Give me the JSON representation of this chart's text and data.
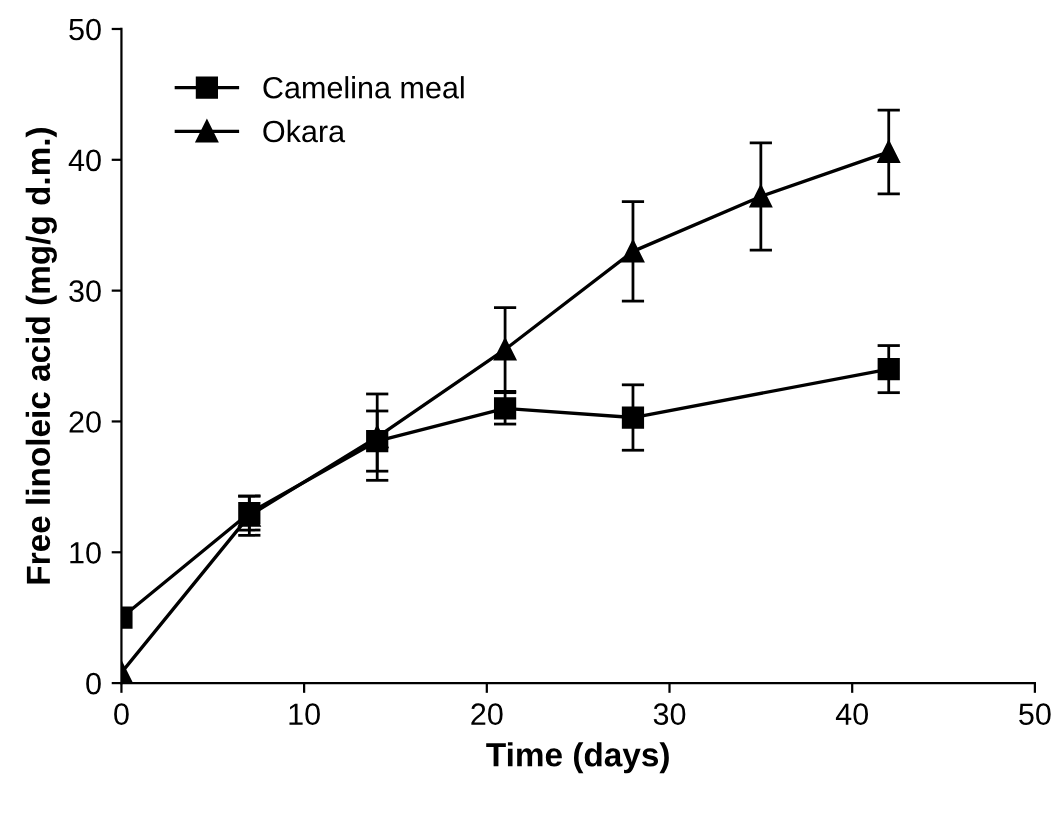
{
  "chart_data": {
    "type": "line",
    "xlabel": "Time (days)",
    "ylabel": "Free linoleic acid (mg/g d.m.)",
    "xlim": [
      0,
      50
    ],
    "ylim": [
      0,
      50
    ],
    "xticks": [
      0,
      10,
      20,
      30,
      40,
      50
    ],
    "yticks": [
      0,
      10,
      20,
      30,
      40,
      50
    ],
    "grid": false,
    "legend": "top left",
    "series": [
      {
        "name": "Camelina meal",
        "color": "#000000",
        "marker": "square",
        "x": [
          0,
          7,
          14,
          21,
          28,
          42
        ],
        "values": [
          5,
          13,
          18.5,
          21,
          20.3,
          24
        ],
        "errors": [
          null,
          1.3,
          2.3,
          1.2,
          2.5,
          1.8
        ]
      },
      {
        "name": "Okara",
        "color": "#000000",
        "marker": "triangle",
        "x": [
          0,
          7,
          14,
          21,
          28,
          35,
          42
        ],
        "values": [
          0.8,
          12.8,
          18.8,
          25.5,
          33,
          37.2,
          40.6
        ],
        "errors": [
          null,
          1.5,
          3.3,
          3.2,
          3.8,
          4.1,
          3.2
        ]
      }
    ]
  }
}
